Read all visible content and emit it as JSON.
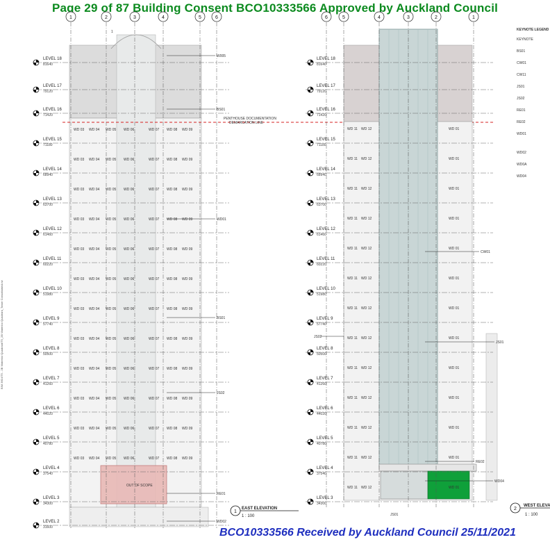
{
  "header": {
    "text": "Page 29 of 87  Building Consent BCO10333566 Approved by Auckland Council"
  },
  "footer": {
    "text": "BCO10333566 Received by Auckland Council 25/11/2021"
  },
  "side_note": "BIM 360://T5 - 2B Waterloo Quadrant/T5_2B Waterloo Quadrant_Tower Consolidated.rvt",
  "colors": {
    "header": "#0b8a1e",
    "footer": "#1f2fbf",
    "demarcation": "#d62020",
    "glass": "#c9d6d6",
    "green_panel": "#0fa03a"
  },
  "levels": [
    {
      "name": "LEVEL 18",
      "rl": "81640"
    },
    {
      "name": "LEVEL 17",
      "rl": "79120"
    },
    {
      "name": "LEVEL 16",
      "rl": "71420"
    },
    {
      "name": "LEVEL 15",
      "rl": "71180"
    },
    {
      "name": "LEVEL 14",
      "rl": "68940"
    },
    {
      "name": "LEVEL 13",
      "rl": "63700"
    },
    {
      "name": "LEVEL 12",
      "rl": "61460"
    },
    {
      "name": "LEVEL 11",
      "rl": "60220"
    },
    {
      "name": "LEVEL 10",
      "rl": "51980"
    },
    {
      "name": "LEVEL 9",
      "rl": "57740"
    },
    {
      "name": "LEVEL 8",
      "rl": "50500"
    },
    {
      "name": "LEVEL 7",
      "rl": "41260"
    },
    {
      "name": "LEVEL 6",
      "rl": "44020"
    },
    {
      "name": "LEVEL 5",
      "rl": "40780"
    },
    {
      "name": "LEVEL 4",
      "rl": "37540"
    },
    {
      "name": "LEVEL 3",
      "rl": "34300"
    },
    {
      "name": "LEVEL 2",
      "rl": "31600"
    }
  ],
  "east": {
    "grid_labels": [
      "1",
      "2",
      "3",
      "4",
      "5",
      "6"
    ],
    "title": "EAST ELEVATION",
    "number": "1",
    "scale": "1 : 100",
    "demarcation_label_1": "PENTHOUSE DOCUMENTATION",
    "demarcation_label_2": "DEMARCATION LINE",
    "window_row": [
      "WD 03",
      "WD 04",
      "WD 05",
      "WD 06",
      "WD 07",
      "WD 08",
      "WD 09"
    ],
    "annotations": [
      "W005",
      "BS01",
      "WD01",
      "BS01",
      "JS02",
      "RE01",
      "WD02"
    ],
    "podium_label": "OUT OF SCOPE",
    "small_note": "1"
  },
  "west": {
    "grid_labels": [
      "6",
      "5",
      "4",
      "3",
      "2",
      "1"
    ],
    "title": "WEST ELEVATION",
    "number": "2",
    "scale": "1 : 100",
    "window_row": [
      "WD 11",
      "WD 12",
      "WD 01"
    ],
    "annotations": [
      "CW01",
      "JS02",
      "JS01",
      "RE02",
      "WD04",
      "JS01"
    ]
  },
  "keynote": {
    "title": "KEYNOTE LEGEND",
    "items": [
      "KEYNOTE",
      "BS01",
      "CW01",
      "CW11",
      "JS01",
      "JS02",
      "RE01",
      "RE02",
      "WD01",
      "WD02",
      "WD0A",
      "WD04"
    ]
  }
}
